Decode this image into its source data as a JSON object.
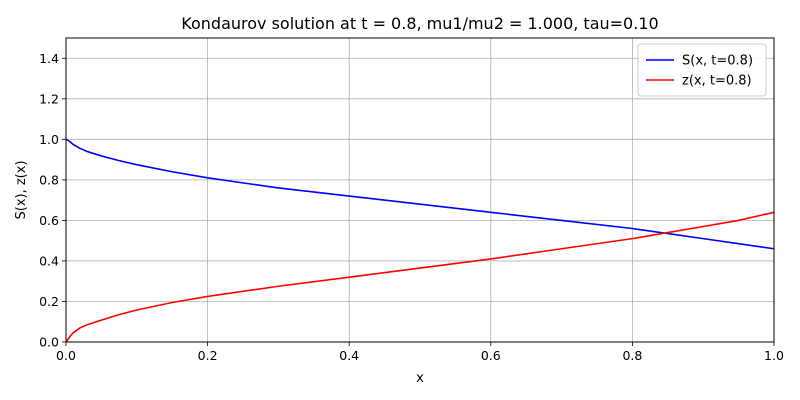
{
  "chart_data": {
    "type": "line",
    "title": "Kondaurov solution at t = 0.8, mu1/mu2 = 1.000, tau=0.10",
    "xlabel": "x",
    "ylabel": "S(x), z(x)",
    "xlim": [
      0.0,
      1.0
    ],
    "ylim": [
      0.0,
      1.5
    ],
    "xticks": [
      "0.0",
      "0.2",
      "0.4",
      "0.6",
      "0.8",
      "1.0"
    ],
    "yticks": [
      "0.0",
      "0.2",
      "0.4",
      "0.6",
      "0.8",
      "1.0",
      "1.2",
      "1.4"
    ],
    "grid": true,
    "legend_position": "top-right",
    "series": [
      {
        "name": "S(x, t=0.8)",
        "color": "#0000ff",
        "x": [
          0.0,
          0.005,
          0.01,
          0.02,
          0.03,
          0.05,
          0.075,
          0.1,
          0.15,
          0.2,
          0.3,
          0.4,
          0.5,
          0.6,
          0.7,
          0.8,
          0.85,
          0.9,
          0.95,
          1.0
        ],
        "y": [
          1.0,
          0.99,
          0.975,
          0.955,
          0.94,
          0.918,
          0.895,
          0.875,
          0.84,
          0.81,
          0.76,
          0.72,
          0.68,
          0.64,
          0.6,
          0.56,
          0.535,
          0.51,
          0.485,
          0.46
        ]
      },
      {
        "name": "z(x, t=0.8)",
        "color": "#ff0000",
        "x": [
          0.0,
          0.005,
          0.01,
          0.02,
          0.03,
          0.05,
          0.075,
          0.1,
          0.15,
          0.2,
          0.3,
          0.4,
          0.5,
          0.6,
          0.7,
          0.8,
          0.85,
          0.9,
          0.95,
          1.0
        ],
        "y": [
          0.0,
          0.025,
          0.045,
          0.07,
          0.085,
          0.108,
          0.135,
          0.158,
          0.195,
          0.225,
          0.275,
          0.32,
          0.365,
          0.41,
          0.46,
          0.51,
          0.54,
          0.57,
          0.6,
          0.64
        ]
      }
    ]
  }
}
